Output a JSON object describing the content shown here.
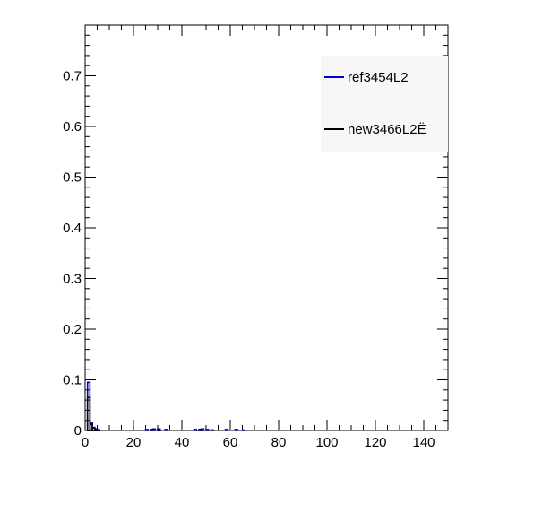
{
  "chart_data": {
    "type": "histogram",
    "xlim": [
      0,
      150
    ],
    "ylim": [
      0,
      0.8
    ],
    "xticks": [
      0,
      20,
      40,
      60,
      80,
      100,
      120,
      140
    ],
    "yticks": [
      0,
      0.1,
      0.2,
      0.3,
      0.4,
      0.5,
      0.6,
      0.7
    ],
    "xtick_labels": [
      "0",
      "20",
      "40",
      "60",
      "80",
      "100",
      "120",
      "140"
    ],
    "ytick_labels": [
      "0",
      "0.1",
      "0.2",
      "0.3",
      "0.4",
      "0.5",
      "0.6",
      "0.7"
    ],
    "bin_width": 1,
    "legend_position": "top-right",
    "series": [
      {
        "name": "ref3454L2",
        "color": "#0000cc",
        "bins": [
          {
            "x": 0,
            "y": 0.0
          },
          {
            "x": 1,
            "y": 0.095
          },
          {
            "x": 2,
            "y": 0.015
          },
          {
            "x": 3,
            "y": 0.006
          },
          {
            "x": 4,
            "y": 0.003
          },
          {
            "x": 5,
            "y": 0.001
          },
          {
            "x": 25,
            "y": 0.002
          },
          {
            "x": 28,
            "y": 0.003
          },
          {
            "x": 30,
            "y": 0.003
          },
          {
            "x": 33,
            "y": 0.002
          },
          {
            "x": 45,
            "y": 0.002
          },
          {
            "x": 48,
            "y": 0.003
          },
          {
            "x": 50,
            "y": 0.002
          },
          {
            "x": 58,
            "y": 0.002
          },
          {
            "x": 62,
            "y": 0.002
          },
          {
            "x": 65,
            "y": 0.001
          }
        ]
      },
      {
        "name": "new3466L2Ë",
        "color": "#000000",
        "bins": [
          {
            "x": 0,
            "y": 0.0
          },
          {
            "x": 1,
            "y": 0.065
          },
          {
            "x": 2,
            "y": 0.012
          },
          {
            "x": 3,
            "y": 0.005
          },
          {
            "x": 4,
            "y": 0.002
          },
          {
            "x": 5,
            "y": 0.001
          },
          {
            "x": 27,
            "y": 0.002
          },
          {
            "x": 30,
            "y": 0.002
          },
          {
            "x": 47,
            "y": 0.002
          },
          {
            "x": 52,
            "y": 0.001
          }
        ]
      }
    ]
  }
}
